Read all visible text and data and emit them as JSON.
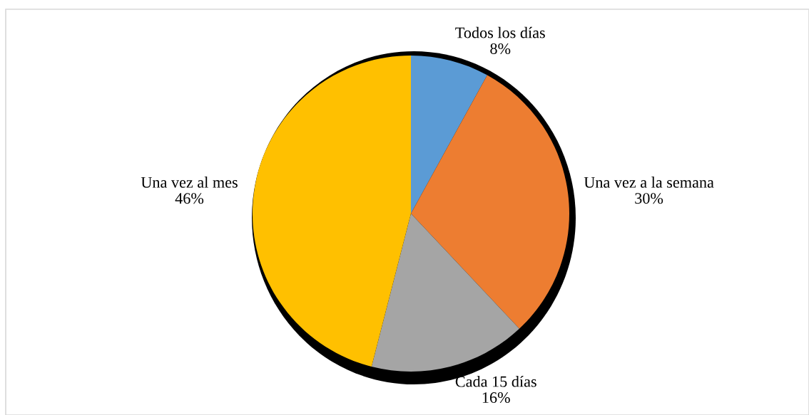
{
  "chart_data": {
    "type": "pie",
    "categories": [
      "Todos los días",
      "Una vez a la semana",
      "Cada 15 días",
      "Una vez al mes"
    ],
    "values": [
      8,
      30,
      16,
      46
    ],
    "colors": [
      "#5b9bd5",
      "#ed7d31",
      "#a5a5a5",
      "#ffc000"
    ],
    "value_labels": [
      "8%",
      "30%",
      "16%",
      "46%"
    ],
    "legend": false
  }
}
